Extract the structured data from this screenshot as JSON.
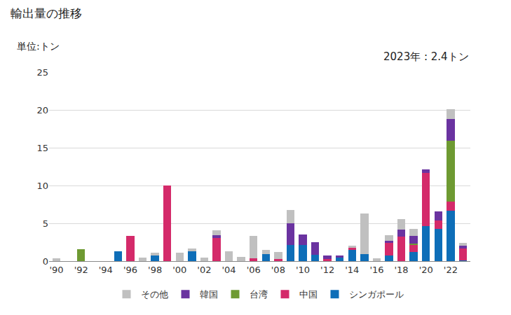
{
  "chart_data": {
    "type": "bar",
    "stacked": true,
    "title": "輸出量の推移",
    "ylabel": "単位:トン",
    "annotations": [
      "2023年 : 2.4トン"
    ],
    "categories": [
      "'90",
      null,
      "'92",
      null,
      "'94",
      null,
      "'96",
      null,
      "'98",
      null,
      "'00",
      null,
      "'02",
      null,
      "'04",
      null,
      "'06",
      null,
      "'08",
      null,
      "'10",
      null,
      "'12",
      null,
      "'14",
      null,
      "'16",
      null,
      "'18",
      null,
      "'20",
      null,
      "'22",
      null
    ],
    "series": [
      {
        "name": "シンガポール",
        "color": "#0e6eb8",
        "values": [
          0,
          0,
          0,
          0,
          0,
          1.3,
          0,
          0,
          0.7,
          0,
          0,
          1.3,
          0,
          0,
          0,
          0,
          0,
          0.9,
          0,
          2.1,
          2.1,
          0.8,
          0,
          0.5,
          1.5,
          0.9,
          0,
          0.7,
          0,
          1.2,
          4.6,
          4.3,
          6.7,
          0.1
        ]
      },
      {
        "name": "中国",
        "color": "#d42a6a",
        "values": [
          0,
          0,
          0,
          0,
          0,
          0,
          3.3,
          0,
          0,
          10.0,
          0,
          0,
          0,
          3.1,
          0,
          0,
          0.4,
          0,
          0.3,
          0,
          0,
          0,
          0.3,
          0,
          0.3,
          0,
          0,
          1.7,
          3.2,
          0.9,
          7.1,
          1.1,
          1.2,
          1.6
        ]
      },
      {
        "name": "台湾",
        "color": "#6e9a32",
        "values": [
          0,
          0,
          1.6,
          0,
          0,
          0,
          0,
          0,
          0,
          0,
          0,
          0,
          0,
          0,
          0,
          0,
          0,
          0,
          0,
          0,
          0,
          0,
          0,
          0,
          0,
          0,
          0,
          0,
          0,
          0.2,
          0,
          0,
          8.0,
          0
        ]
      },
      {
        "name": "韓国",
        "color": "#6a33a0",
        "values": [
          0,
          0,
          0,
          0,
          0,
          0,
          0,
          0,
          0,
          0,
          0,
          0,
          0,
          0.3,
          0,
          0,
          0,
          0,
          0,
          2.9,
          1.4,
          1.7,
          0.4,
          0.2,
          0,
          0,
          0,
          0.3,
          1.0,
          1.0,
          0.4,
          1.2,
          2.9,
          0.3
        ]
      },
      {
        "name": "その他",
        "color": "#c0c0c0",
        "values": [
          0.4,
          0,
          0,
          0,
          0,
          0,
          0,
          0.5,
          0.4,
          0,
          1.1,
          0.4,
          0.5,
          0.7,
          1.3,
          0.6,
          2.9,
          0.6,
          0.9,
          1.8,
          0,
          0,
          0,
          0,
          0.2,
          5.4,
          0.4,
          0.7,
          1.4,
          1.0,
          0,
          0,
          1.3,
          0.4
        ]
      }
    ],
    "ylim": [
      0,
      25
    ],
    "yticks": [
      0,
      5,
      10,
      15,
      20,
      25
    ],
    "grid": true,
    "legend": "bottom"
  }
}
